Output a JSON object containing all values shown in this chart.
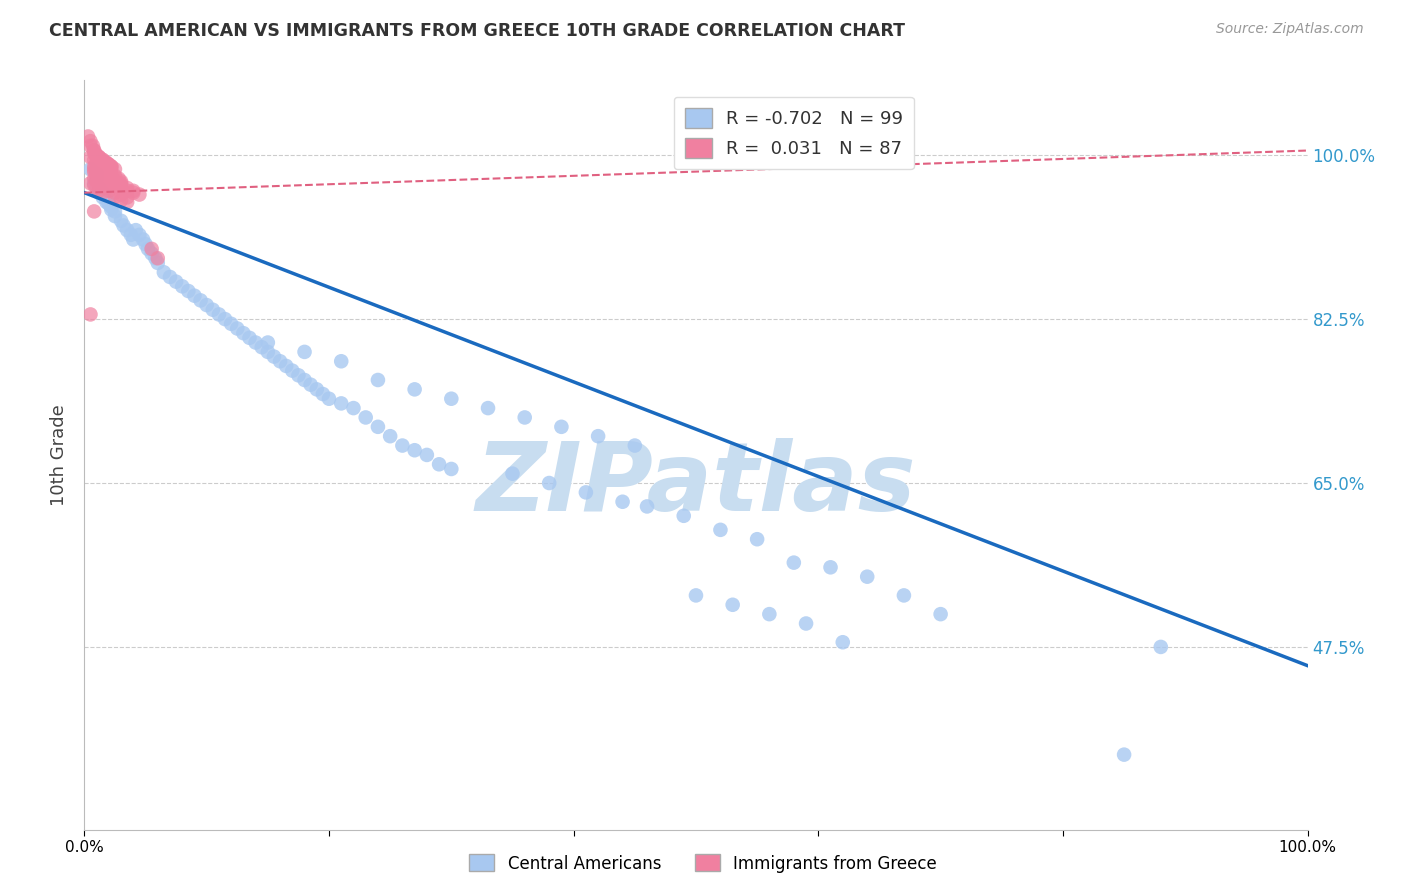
{
  "title": "CENTRAL AMERICAN VS IMMIGRANTS FROM GREECE 10TH GRADE CORRELATION CHART",
  "source": "Source: ZipAtlas.com",
  "ylabel": "10th Grade",
  "xlim": [
    0.0,
    1.0
  ],
  "ylim": [
    0.28,
    1.08
  ],
  "yticks": [
    0.475,
    0.65,
    0.825,
    1.0
  ],
  "ytick_labels": [
    "47.5%",
    "65.0%",
    "82.5%",
    "100.0%"
  ],
  "xticks": [
    0.0,
    0.2,
    0.4,
    0.6,
    0.8,
    1.0
  ],
  "xtick_labels": [
    "0.0%",
    "",
    "",
    "",
    "",
    "100.0%"
  ],
  "blue_R": -0.702,
  "blue_N": 99,
  "pink_R": 0.031,
  "pink_N": 87,
  "blue_color": "#a8c8f0",
  "pink_color": "#f080a0",
  "blue_line_color": "#1a6abf",
  "pink_line_color": "#e06080",
  "watermark": "ZIPatlas",
  "watermark_color": "#c8ddf0",
  "legend_label_blue": "Central Americans",
  "legend_label_pink": "Immigrants from Greece",
  "blue_scatter_x": [
    0.005,
    0.008,
    0.01,
    0.012,
    0.015,
    0.018,
    0.02,
    0.022,
    0.025,
    0.01,
    0.012,
    0.015,
    0.018,
    0.02,
    0.022,
    0.025,
    0.03,
    0.032,
    0.035,
    0.038,
    0.04,
    0.042,
    0.045,
    0.048,
    0.05,
    0.052,
    0.055,
    0.058,
    0.06,
    0.065,
    0.07,
    0.075,
    0.08,
    0.085,
    0.09,
    0.095,
    0.1,
    0.105,
    0.11,
    0.115,
    0.12,
    0.125,
    0.13,
    0.135,
    0.14,
    0.145,
    0.15,
    0.155,
    0.16,
    0.165,
    0.17,
    0.175,
    0.18,
    0.185,
    0.19,
    0.195,
    0.2,
    0.21,
    0.22,
    0.23,
    0.24,
    0.25,
    0.26,
    0.27,
    0.28,
    0.29,
    0.3,
    0.15,
    0.18,
    0.21,
    0.24,
    0.27,
    0.3,
    0.33,
    0.36,
    0.39,
    0.42,
    0.45,
    0.35,
    0.38,
    0.41,
    0.44,
    0.46,
    0.49,
    0.52,
    0.55,
    0.58,
    0.61,
    0.64,
    0.67,
    0.7,
    0.5,
    0.53,
    0.56,
    0.59,
    0.62,
    0.88,
    0.85
  ],
  "blue_scatter_y": [
    0.985,
    0.97,
    0.975,
    0.965,
    0.96,
    0.955,
    0.95,
    0.945,
    0.94,
    0.98,
    0.96,
    0.955,
    0.95,
    0.948,
    0.942,
    0.935,
    0.93,
    0.925,
    0.92,
    0.915,
    0.91,
    0.92,
    0.915,
    0.91,
    0.905,
    0.9,
    0.895,
    0.89,
    0.885,
    0.875,
    0.87,
    0.865,
    0.86,
    0.855,
    0.85,
    0.845,
    0.84,
    0.835,
    0.83,
    0.825,
    0.82,
    0.815,
    0.81,
    0.805,
    0.8,
    0.795,
    0.79,
    0.785,
    0.78,
    0.775,
    0.77,
    0.765,
    0.76,
    0.755,
    0.75,
    0.745,
    0.74,
    0.735,
    0.73,
    0.72,
    0.71,
    0.7,
    0.69,
    0.685,
    0.68,
    0.67,
    0.665,
    0.8,
    0.79,
    0.78,
    0.76,
    0.75,
    0.74,
    0.73,
    0.72,
    0.71,
    0.7,
    0.69,
    0.66,
    0.65,
    0.64,
    0.63,
    0.625,
    0.615,
    0.6,
    0.59,
    0.565,
    0.56,
    0.55,
    0.53,
    0.51,
    0.53,
    0.52,
    0.51,
    0.5,
    0.48,
    0.475,
    0.36
  ],
  "pink_scatter_x": [
    0.003,
    0.005,
    0.007,
    0.008,
    0.01,
    0.012,
    0.015,
    0.018,
    0.02,
    0.022,
    0.005,
    0.008,
    0.01,
    0.012,
    0.015,
    0.018,
    0.02,
    0.022,
    0.025,
    0.008,
    0.01,
    0.012,
    0.015,
    0.018,
    0.02,
    0.022,
    0.005,
    0.008,
    0.01,
    0.012,
    0.015,
    0.018,
    0.02,
    0.022,
    0.025,
    0.028,
    0.03,
    0.008,
    0.01,
    0.012,
    0.015,
    0.018,
    0.02,
    0.025,
    0.03,
    0.008,
    0.01,
    0.012,
    0.015,
    0.018,
    0.02,
    0.025,
    0.03,
    0.035,
    0.04,
    0.008,
    0.01,
    0.012,
    0.015,
    0.018,
    0.02,
    0.025,
    0.03,
    0.035,
    0.04,
    0.045,
    0.008,
    0.01,
    0.012,
    0.015,
    0.018,
    0.02,
    0.025,
    0.03,
    0.035,
    0.005,
    0.008,
    0.01,
    0.012,
    0.015,
    0.055,
    0.025,
    0.03,
    0.035,
    0.005,
    0.06,
    0.008
  ],
  "pink_scatter_y": [
    1.02,
    1.015,
    1.01,
    1.005,
    1.0,
    0.998,
    0.995,
    0.992,
    0.99,
    0.988,
    1.01,
    1.005,
    1.0,
    0.998,
    0.995,
    0.992,
    0.99,
    0.988,
    0.985,
    1.002,
    0.998,
    0.995,
    0.992,
    0.99,
    0.988,
    0.985,
    0.998,
    0.995,
    0.992,
    0.99,
    0.988,
    0.985,
    0.982,
    0.98,
    0.978,
    0.975,
    0.972,
    0.988,
    0.985,
    0.982,
    0.98,
    0.978,
    0.975,
    0.972,
    0.97,
    0.985,
    0.982,
    0.98,
    0.978,
    0.975,
    0.972,
    0.97,
    0.968,
    0.965,
    0.962,
    0.982,
    0.98,
    0.978,
    0.975,
    0.972,
    0.97,
    0.968,
    0.965,
    0.962,
    0.96,
    0.958,
    0.975,
    0.972,
    0.97,
    0.968,
    0.965,
    0.962,
    0.96,
    0.958,
    0.955,
    0.97,
    0.968,
    0.965,
    0.962,
    0.96,
    0.9,
    0.955,
    0.952,
    0.95,
    0.83,
    0.89,
    0.94
  ],
  "blue_trendline_x": [
    0.0,
    1.0
  ],
  "blue_trendline_y_start": 0.96,
  "blue_trendline_y_end": 0.455,
  "pink_trendline_x": [
    0.0,
    1.0
  ],
  "pink_trendline_y_start": 0.96,
  "pink_trendline_y_end": 1.005
}
